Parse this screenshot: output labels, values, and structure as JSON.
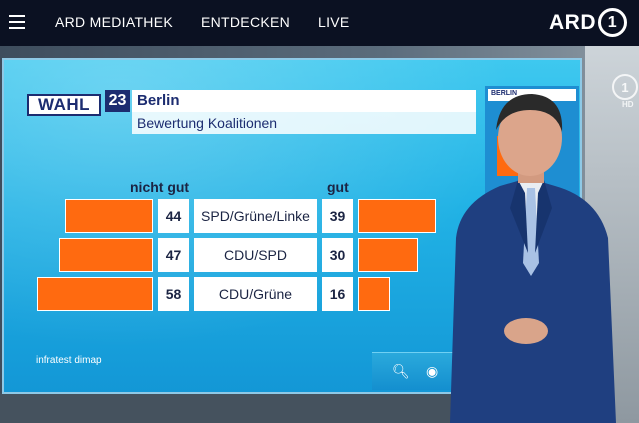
{
  "nav": {
    "items": [
      "ARD MEDIATHEK",
      "ENTDECKEN",
      "LIVE"
    ],
    "brand": "ARD",
    "brand_number": "1"
  },
  "graphic": {
    "badge": "WAHL",
    "badge_number": "23",
    "title": "Berlin",
    "subtitle": "Bewertung Koalitionen",
    "col_left": "nicht gut",
    "col_right": "gut",
    "source": "infratest dimap",
    "side_tag": "BERLIN"
  },
  "chart_data": {
    "type": "bar",
    "title": "Berlin",
    "subtitle": "Bewertung Koalitionen",
    "categories": [
      "SPD/Grüne/Linke",
      "CDU/SPD",
      "CDU/Grüne"
    ],
    "series": [
      {
        "name": "nicht gut",
        "values": [
          44,
          47,
          58
        ]
      },
      {
        "name": "gut",
        "values": [
          39,
          30,
          16
        ]
      }
    ],
    "colors": {
      "bar": "#ff6a10",
      "text": "#1b2443"
    }
  },
  "logo_bug": {
    "number": "1",
    "hd": "HD"
  },
  "colors": {
    "screen": "#21b2e5",
    "bars": "#ff6a10",
    "navy": "#1c2c70"
  }
}
